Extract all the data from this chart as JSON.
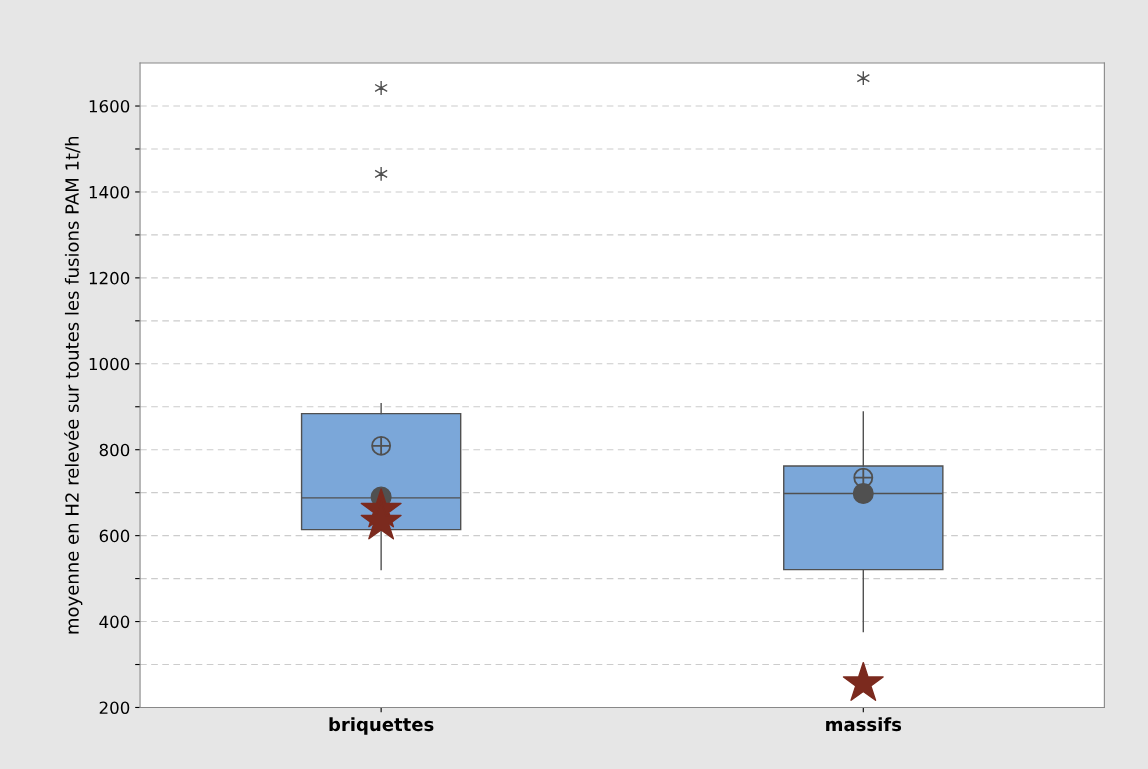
{
  "chart_data": {
    "type": "box",
    "ylabel": "moyenne en H2 relevée sur toutes les fusions PAM 1t/h",
    "categories": [
      "briquettes",
      "massifs"
    ],
    "color": "#7ba7d9",
    "boxes": [
      {
        "low": 521,
        "q1": 614,
        "median": 688,
        "q3": 884,
        "high": 907,
        "mean": 809,
        "outliers": [
          1642,
          1442
        ]
      },
      {
        "low": 377,
        "q1": 521,
        "median": 698,
        "q3": 762,
        "high": 888,
        "mean": 735,
        "outliers": [
          1665
        ]
      }
    ],
    "series": [
      {
        "type": "scatter",
        "color": "#505050",
        "marker": "circle",
        "x": [
          "briquettes",
          "massifs"
        ],
        "values": [
          690,
          698
        ]
      },
      {
        "type": "scatter",
        "color": "#7b2a1e",
        "marker": "star",
        "x": [
          "briquettes",
          "briquettes",
          "massifs"
        ],
        "values": [
          660,
          632,
          256
        ]
      }
    ],
    "ylim": [
      200,
      1700
    ],
    "yticks": [
      200,
      {
        "value": 300,
        "label": null
      },
      400,
      {
        "value": 500,
        "label": null
      },
      600,
      {
        "value": 700,
        "label": null
      },
      800,
      {
        "value": 900,
        "label": null
      },
      1000,
      {
        "value": 1100,
        "label": null
      },
      1200,
      {
        "value": 1300,
        "label": null
      },
      1400,
      {
        "value": 1500,
        "label": null
      },
      1600
    ],
    "grid": "y",
    "legend": false
  }
}
